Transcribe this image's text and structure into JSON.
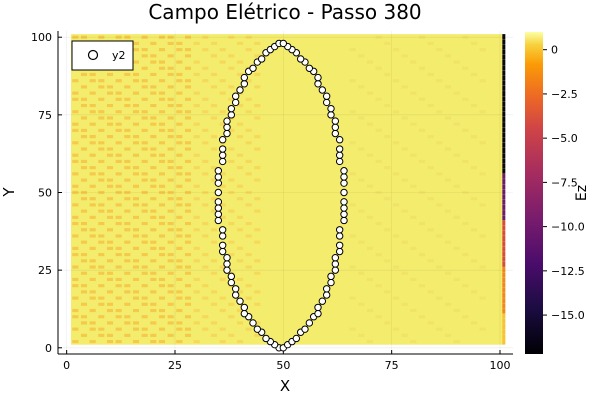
{
  "chart_data": {
    "type": "heatmap",
    "title": "Campo Elétrico - Passo 380",
    "xlabel": "X",
    "ylabel": "Y",
    "xlim": [
      -2,
      103
    ],
    "ylim": [
      -2,
      102
    ],
    "xticks": [
      0,
      25,
      50,
      75,
      100
    ],
    "yticks": [
      0,
      25,
      50,
      75,
      100
    ],
    "field_extent": {
      "x": [
        1,
        101
      ],
      "y": [
        1,
        101
      ]
    },
    "colorbar": {
      "label": "Ez",
      "min": -17.2,
      "max": 1.0,
      "colormap": "inferno",
      "ticks": [
        0,
        -2.5,
        -5.0,
        -7.5,
        -10.0,
        -12.5,
        -15.0
      ],
      "tick_labels": [
        "0",
        "−2.5",
        "−5.0",
        "−7.5",
        "−10.0",
        "−12.5",
        "−15.0"
      ]
    },
    "field_description_values": {
      "typical_interior": 0.3,
      "left_region": -0.5,
      "right_edge_column_x": 101,
      "right_edge_min": -17.0
    },
    "legend": {
      "position": "top-left",
      "entries": [
        {
          "name": "y2",
          "marker": "circle",
          "color": "#ffffff"
        }
      ]
    },
    "series": [
      {
        "name": "y2",
        "type": "scatter",
        "points": [
          [
            49,
            0
          ],
          [
            50,
            0
          ],
          [
            48,
            1
          ],
          [
            51,
            1
          ],
          [
            47,
            2
          ],
          [
            52,
            2
          ],
          [
            46,
            3
          ],
          [
            53,
            3
          ],
          [
            45,
            5
          ],
          [
            54,
            5
          ],
          [
            44,
            6
          ],
          [
            55,
            6
          ],
          [
            43,
            8
          ],
          [
            56,
            8
          ],
          [
            42,
            10
          ],
          [
            57,
            10
          ],
          [
            41,
            11
          ],
          [
            58,
            11
          ],
          [
            41,
            13
          ],
          [
            58,
            13
          ],
          [
            40,
            15
          ],
          [
            59,
            15
          ],
          [
            39,
            17
          ],
          [
            60,
            17
          ],
          [
            39,
            19
          ],
          [
            60,
            19
          ],
          [
            38,
            21
          ],
          [
            61,
            21
          ],
          [
            38,
            23
          ],
          [
            61,
            23
          ],
          [
            37,
            25
          ],
          [
            62,
            25
          ],
          [
            37,
            27
          ],
          [
            62,
            27
          ],
          [
            37,
            29
          ],
          [
            62,
            29
          ],
          [
            36,
            31
          ],
          [
            63,
            31
          ],
          [
            36,
            33
          ],
          [
            63,
            33
          ],
          [
            36,
            36
          ],
          [
            63,
            36
          ],
          [
            36,
            38
          ],
          [
            63,
            38
          ],
          [
            35,
            41
          ],
          [
            64,
            41
          ],
          [
            35,
            43
          ],
          [
            64,
            43
          ],
          [
            35,
            45
          ],
          [
            64,
            45
          ],
          [
            35,
            47
          ],
          [
            64,
            47
          ],
          [
            35,
            50
          ],
          [
            64,
            50
          ],
          [
            35,
            53
          ],
          [
            64,
            53
          ],
          [
            35,
            55
          ],
          [
            64,
            55
          ],
          [
            35,
            57
          ],
          [
            64,
            57
          ],
          [
            36,
            60
          ],
          [
            63,
            60
          ],
          [
            36,
            62
          ],
          [
            63,
            62
          ],
          [
            36,
            64
          ],
          [
            63,
            64
          ],
          [
            36,
            67
          ],
          [
            63,
            67
          ],
          [
            37,
            69
          ],
          [
            62,
            69
          ],
          [
            37,
            71
          ],
          [
            62,
            71
          ],
          [
            37,
            73
          ],
          [
            62,
            73
          ],
          [
            38,
            75
          ],
          [
            61,
            75
          ],
          [
            38,
            77
          ],
          [
            61,
            77
          ],
          [
            39,
            79
          ],
          [
            60,
            79
          ],
          [
            39,
            81
          ],
          [
            60,
            81
          ],
          [
            40,
            83
          ],
          [
            59,
            83
          ],
          [
            41,
            85
          ],
          [
            58,
            85
          ],
          [
            41,
            87
          ],
          [
            58,
            87
          ],
          [
            42,
            89
          ],
          [
            57,
            89
          ],
          [
            43,
            90
          ],
          [
            56,
            90
          ],
          [
            44,
            92
          ],
          [
            55,
            92
          ],
          [
            45,
            93
          ],
          [
            54,
            93
          ],
          [
            46,
            95
          ],
          [
            53,
            95
          ],
          [
            47,
            96
          ],
          [
            52,
            96
          ],
          [
            48,
            97
          ],
          [
            51,
            97
          ],
          [
            49,
            98
          ],
          [
            50,
            98
          ]
        ]
      }
    ]
  }
}
